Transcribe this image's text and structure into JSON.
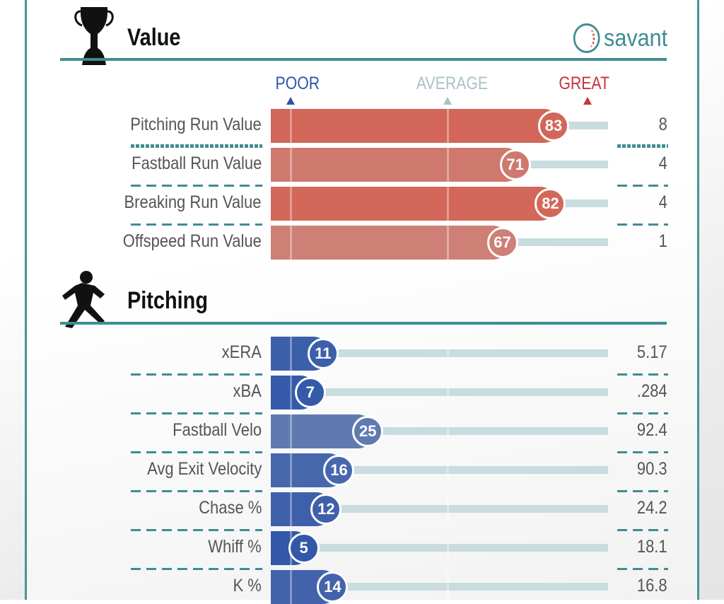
{
  "value_section": {
    "title": "Value",
    "brand": "savant"
  },
  "scale": {
    "poor": "POOR",
    "average": "AVERAGE",
    "great": "GREAT"
  },
  "value_rows": [
    {
      "label": "Pitching Run Value",
      "percentile": 83,
      "value": "8"
    },
    {
      "label": "Fastball Run Value",
      "percentile": 71,
      "value": "4"
    },
    {
      "label": "Breaking Run Value",
      "percentile": 82,
      "value": "4"
    },
    {
      "label": "Offspeed Run Value",
      "percentile": 67,
      "value": "1"
    }
  ],
  "pitching_section": {
    "title": "Pitching"
  },
  "pitching_rows": [
    {
      "label": "xERA",
      "percentile": 11,
      "value": "5.17"
    },
    {
      "label": "xBA",
      "percentile": 7,
      "value": ".284"
    },
    {
      "label": "Fastball Velo",
      "percentile": 25,
      "value": "92.4"
    },
    {
      "label": "Avg Exit Velocity",
      "percentile": 16,
      "value": "90.3"
    },
    {
      "label": "Chase %",
      "percentile": 12,
      "value": "24.2"
    },
    {
      "label": "Whiff %",
      "percentile": 5,
      "value": "18.1"
    },
    {
      "label": "K %",
      "percentile": 14,
      "value": "16.8"
    }
  ],
  "colors": {
    "poor": "#2f55a8",
    "average": "#c4c4c4",
    "great": "#d5503f",
    "accent": "#3f8d91"
  }
}
